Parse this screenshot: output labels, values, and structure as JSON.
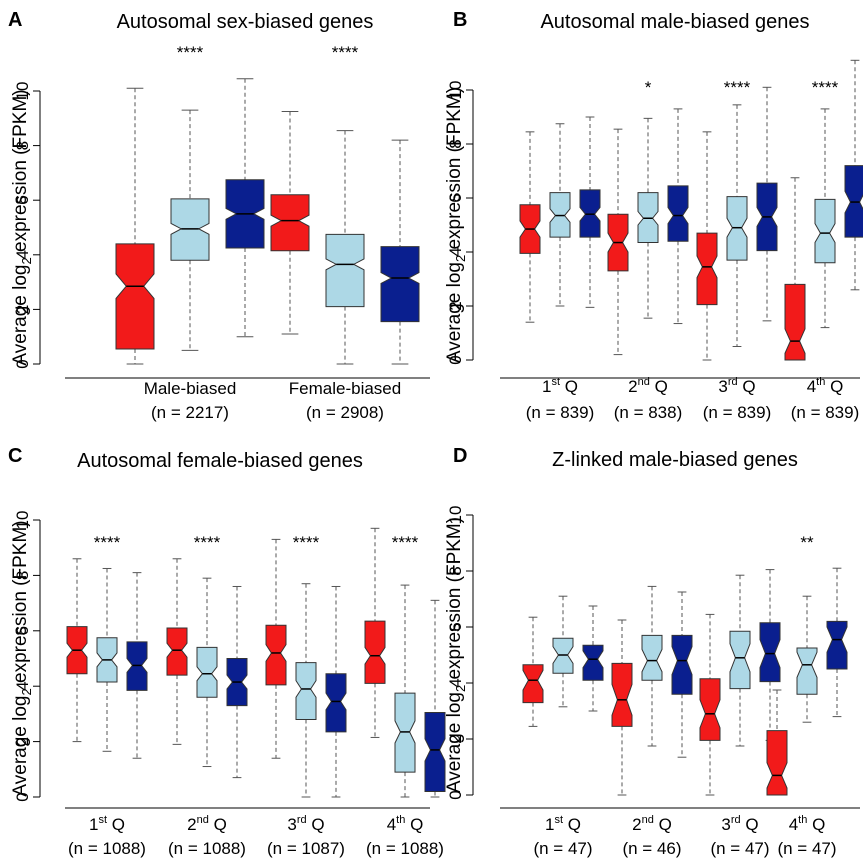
{
  "colors": {
    "red": "#f21a1a",
    "light_blue": "#add8e6",
    "dark_blue": "#0a1f8f"
  },
  "chart_data": [
    {
      "type": "boxplot",
      "panel_label": "A",
      "title": "Autosomal sex-biased genes",
      "ylabel": "Average log2 expression (FPKM)",
      "ylim": [
        0,
        10
      ],
      "yticks": [
        0,
        2,
        4,
        6,
        8,
        10
      ],
      "categories": [
        {
          "label": "Male-biased",
          "n": "(n = 2217)",
          "sig": "****",
          "boxes": [
            {
              "color": "red",
              "min": 0,
              "q1": 0.55,
              "median": 2.85,
              "q3": 4.4,
              "max": 10.1,
              "notch_lo": 2.4,
              "notch_hi": 3.3
            },
            {
              "color": "light_blue",
              "min": 0.5,
              "q1": 3.8,
              "median": 4.95,
              "q3": 6.05,
              "max": 9.3,
              "notch_lo": 4.75,
              "notch_hi": 5.15
            },
            {
              "color": "dark_blue",
              "min": 1.0,
              "q1": 4.25,
              "median": 5.5,
              "q3": 6.75,
              "max": 10.45,
              "notch_lo": 5.3,
              "notch_hi": 5.7
            }
          ]
        },
        {
          "label": "Female-biased",
          "n": "(n = 2908)",
          "sig": "****",
          "boxes": [
            {
              "color": "red",
              "min": 1.1,
              "q1": 4.15,
              "median": 5.25,
              "q3": 6.2,
              "max": 9.25,
              "notch_lo": 5.05,
              "notch_hi": 5.45
            },
            {
              "color": "light_blue",
              "min": 0,
              "q1": 2.1,
              "median": 3.65,
              "q3": 4.75,
              "max": 8.55,
              "notch_lo": 3.45,
              "notch_hi": 3.85
            },
            {
              "color": "dark_blue",
              "min": 0,
              "q1": 1.55,
              "median": 3.15,
              "q3": 4.3,
              "max": 8.2,
              "notch_lo": 2.95,
              "notch_hi": 3.35
            }
          ]
        }
      ]
    },
    {
      "type": "boxplot",
      "panel_label": "B",
      "title": "Autosomal male-biased genes",
      "ylabel": "Average log2 expression (FPKM)",
      "ylim": [
        0,
        10
      ],
      "yticks": [
        0,
        2,
        4,
        6,
        8,
        10
      ],
      "categories": [
        {
          "label": "1",
          "sup": "st",
          "suffix": " Q",
          "n": "(n = 839)",
          "sig": "",
          "boxes": [
            {
              "color": "red",
              "min": 1.4,
              "q1": 3.95,
              "median": 4.85,
              "q3": 5.75,
              "max": 8.45,
              "notch_lo": 4.55,
              "notch_hi": 5.15
            },
            {
              "color": "light_blue",
              "min": 2.0,
              "q1": 4.55,
              "median": 5.35,
              "q3": 6.2,
              "max": 8.75,
              "notch_lo": 5.1,
              "notch_hi": 5.6
            },
            {
              "color": "dark_blue",
              "min": 1.95,
              "q1": 4.55,
              "median": 5.4,
              "q3": 6.3,
              "max": 9.0,
              "notch_lo": 5.15,
              "notch_hi": 5.65
            }
          ]
        },
        {
          "label": "2",
          "sup": "nd",
          "suffix": " Q",
          "n": "(n = 838)",
          "sig": "*",
          "boxes": [
            {
              "color": "red",
              "min": 0.2,
              "q1": 3.3,
              "median": 4.35,
              "q3": 5.4,
              "max": 8.55,
              "notch_lo": 4.0,
              "notch_hi": 4.7
            },
            {
              "color": "light_blue",
              "min": 1.55,
              "q1": 4.35,
              "median": 5.25,
              "q3": 6.2,
              "max": 8.95,
              "notch_lo": 5.0,
              "notch_hi": 5.5
            },
            {
              "color": "dark_blue",
              "min": 1.35,
              "q1": 4.4,
              "median": 5.35,
              "q3": 6.45,
              "max": 9.3,
              "notch_lo": 5.05,
              "notch_hi": 5.65
            }
          ]
        },
        {
          "label": "3",
          "sup": "rd",
          "suffix": " Q",
          "n": "(n = 839)",
          "sig": "****",
          "boxes": [
            {
              "color": "red",
              "min": 0,
              "q1": 2.05,
              "median": 3.45,
              "q3": 4.7,
              "max": 8.45,
              "notch_lo": 3.05,
              "notch_hi": 3.85
            },
            {
              "color": "light_blue",
              "min": 0.5,
              "q1": 3.7,
              "median": 4.9,
              "q3": 6.05,
              "max": 9.45,
              "notch_lo": 4.55,
              "notch_hi": 5.25
            },
            {
              "color": "dark_blue",
              "min": 1.45,
              "q1": 4.05,
              "median": 5.3,
              "q3": 6.55,
              "max": 10.1,
              "notch_lo": 4.95,
              "notch_hi": 5.65
            }
          ]
        },
        {
          "label": "4",
          "sup": "th",
          "suffix": " Q",
          "n": "(n = 839)",
          "sig": "****",
          "boxes": [
            {
              "color": "red",
              "min": 0,
              "q1": 0,
              "median": 0.7,
              "q3": 2.8,
              "max": 6.75,
              "notch_lo": 0.25,
              "notch_hi": 1.15
            },
            {
              "color": "light_blue",
              "min": 1.2,
              "q1": 3.6,
              "median": 4.7,
              "q3": 5.95,
              "max": 9.3,
              "notch_lo": 4.35,
              "notch_hi": 5.05
            },
            {
              "color": "dark_blue",
              "min": 2.6,
              "q1": 4.55,
              "median": 5.85,
              "q3": 7.2,
              "max": 11.1,
              "notch_lo": 5.45,
              "notch_hi": 6.25
            }
          ]
        }
      ]
    },
    {
      "type": "boxplot",
      "panel_label": "C",
      "title": "Autosomal female-biased genes",
      "ylabel": "Average log2 expression (FPKM)",
      "ylim": [
        0,
        10
      ],
      "yticks": [
        0,
        2,
        4,
        6,
        8,
        10
      ],
      "categories": [
        {
          "label": "1",
          "sup": "st",
          "suffix": " Q",
          "n": "(n = 1088)",
          "sig": "****",
          "boxes": [
            {
              "color": "red",
              "min": 2.0,
              "q1": 4.45,
              "median": 5.3,
              "q3": 6.15,
              "max": 8.6,
              "notch_lo": 5.05,
              "notch_hi": 5.55
            },
            {
              "color": "light_blue",
              "min": 1.65,
              "q1": 4.15,
              "median": 4.95,
              "q3": 5.75,
              "max": 8.25,
              "notch_lo": 4.7,
              "notch_hi": 5.2
            },
            {
              "color": "dark_blue",
              "min": 1.4,
              "q1": 3.85,
              "median": 4.75,
              "q3": 5.6,
              "max": 8.1,
              "notch_lo": 4.5,
              "notch_hi": 5.0
            }
          ]
        },
        {
          "label": "2",
          "sup": "nd",
          "suffix": " Q",
          "n": "(n = 1088)",
          "sig": "****",
          "boxes": [
            {
              "color": "red",
              "min": 1.9,
              "q1": 4.4,
              "median": 5.3,
              "q3": 6.1,
              "max": 8.6,
              "notch_lo": 5.05,
              "notch_hi": 5.55
            },
            {
              "color": "light_blue",
              "min": 1.1,
              "q1": 3.6,
              "median": 4.45,
              "q3": 5.4,
              "max": 7.9,
              "notch_lo": 4.2,
              "notch_hi": 4.7
            },
            {
              "color": "dark_blue",
              "min": 0.7,
              "q1": 3.3,
              "median": 4.15,
              "q3": 5.0,
              "max": 7.6,
              "notch_lo": 3.9,
              "notch_hi": 4.4
            }
          ]
        },
        {
          "label": "3",
          "sup": "rd",
          "suffix": " Q",
          "n": "(n = 1087)",
          "sig": "****",
          "boxes": [
            {
              "color": "red",
              "min": 1.4,
              "q1": 4.05,
              "median": 5.2,
              "q3": 6.2,
              "max": 9.3,
              "notch_lo": 4.9,
              "notch_hi": 5.5
            },
            {
              "color": "light_blue",
              "min": 0,
              "q1": 2.8,
              "median": 3.9,
              "q3": 4.85,
              "max": 7.7,
              "notch_lo": 3.6,
              "notch_hi": 4.2
            },
            {
              "color": "dark_blue",
              "min": 0,
              "q1": 2.35,
              "median": 3.45,
              "q3": 4.45,
              "max": 7.6,
              "notch_lo": 3.15,
              "notch_hi": 3.75
            }
          ]
        },
        {
          "label": "4",
          "sup": "th",
          "suffix": " Q",
          "n": "(n = 1088)",
          "sig": "****",
          "boxes": [
            {
              "color": "red",
              "min": 2.15,
              "q1": 4.1,
              "median": 5.1,
              "q3": 6.35,
              "max": 9.7,
              "notch_lo": 4.8,
              "notch_hi": 5.4
            },
            {
              "color": "light_blue",
              "min": 0,
              "q1": 0.9,
              "median": 2.35,
              "q3": 3.75,
              "max": 7.65,
              "notch_lo": 1.95,
              "notch_hi": 2.75
            },
            {
              "color": "dark_blue",
              "min": 0,
              "q1": 0.2,
              "median": 1.7,
              "q3": 3.05,
              "max": 7.1,
              "notch_lo": 1.3,
              "notch_hi": 2.1
            }
          ]
        }
      ]
    },
    {
      "type": "boxplot",
      "panel_label": "D",
      "title": "Z-linked male-biased genes",
      "ylabel": "Average log2 expression (FPKM)",
      "ylim": [
        0,
        10
      ],
      "yticks": [
        0,
        2,
        4,
        6,
        8,
        10
      ],
      "categories": [
        {
          "label": "1",
          "sup": "st",
          "suffix": " Q",
          "n": "(n = 47)",
          "sig": "",
          "boxes": [
            {
              "color": "red",
              "min": 2.45,
              "q1": 3.3,
              "median": 4.1,
              "q3": 4.65,
              "max": 6.35,
              "notch_lo": 3.75,
              "notch_hi": 4.45
            },
            {
              "color": "light_blue",
              "min": 3.15,
              "q1": 4.35,
              "median": 5.0,
              "q3": 5.6,
              "max": 7.1,
              "notch_lo": 4.7,
              "notch_hi": 5.3
            },
            {
              "color": "dark_blue",
              "min": 3.0,
              "q1": 4.1,
              "median": 4.85,
              "q3": 5.35,
              "max": 6.75,
              "notch_lo": 4.55,
              "notch_hi": 5.15
            }
          ]
        },
        {
          "label": "2",
          "sup": "nd",
          "suffix": " Q",
          "n": "(n = 46)",
          "sig": "",
          "boxes": [
            {
              "color": "red",
              "min": 0,
              "q1": 2.45,
              "median": 3.4,
              "q3": 4.7,
              "max": 6.25,
              "notch_lo": 2.85,
              "notch_hi": 3.95
            },
            {
              "color": "light_blue",
              "min": 1.75,
              "q1": 4.1,
              "median": 4.8,
              "q3": 5.7,
              "max": 7.45,
              "notch_lo": 4.4,
              "notch_hi": 5.2
            },
            {
              "color": "dark_blue",
              "min": 1.35,
              "q1": 3.6,
              "median": 4.8,
              "q3": 5.7,
              "max": 7.25,
              "notch_lo": 4.3,
              "notch_hi": 5.3
            }
          ]
        },
        {
          "label": "3",
          "sup": "rd",
          "suffix": " Q",
          "n": "(n = 47)",
          "sig": "",
          "boxes": [
            {
              "color": "red",
              "min": 0,
              "q1": 1.95,
              "median": 2.9,
              "q3": 4.15,
              "max": 6.45,
              "notch_lo": 2.4,
              "notch_hi": 3.4
            },
            {
              "color": "light_blue",
              "min": 1.75,
              "q1": 3.8,
              "median": 4.9,
              "q3": 5.85,
              "max": 7.85,
              "notch_lo": 4.4,
              "notch_hi": 5.4
            },
            {
              "color": "dark_blue",
              "min": 1.95,
              "q1": 4.05,
              "median": 5.05,
              "q3": 6.15,
              "max": 8.05,
              "notch_lo": 4.55,
              "notch_hi": 5.55
            }
          ]
        },
        {
          "label": "4",
          "sup": "th",
          "suffix": " Q",
          "n": "(n = 47)",
          "sig": "**",
          "boxes": [
            {
              "color": "red",
              "min": 0,
              "q1": 0,
              "median": 0.7,
              "q3": 2.3,
              "max": 3.75,
              "notch_lo": 0.25,
              "notch_hi": 1.15
            },
            {
              "color": "light_blue",
              "min": 2.6,
              "q1": 3.6,
              "median": 4.65,
              "q3": 5.25,
              "max": 7.1,
              "notch_lo": 4.2,
              "notch_hi": 5.1
            },
            {
              "color": "dark_blue",
              "min": 2.8,
              "q1": 4.5,
              "median": 5.55,
              "q3": 6.2,
              "max": 8.1,
              "notch_lo": 5.1,
              "notch_hi": 6.0
            }
          ]
        }
      ]
    }
  ]
}
